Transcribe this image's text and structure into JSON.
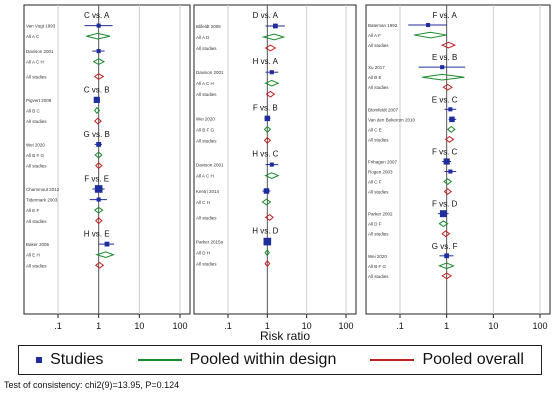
{
  "chart_data": {
    "type": "forest",
    "xlabel": "Risk ratio",
    "xscale": "log",
    "xlim": [
      0.1,
      100
    ],
    "xticks": [
      ".1",
      "1",
      "10",
      "100"
    ],
    "grid": true,
    "legend_position": "bottom",
    "colors": {
      "study": "#1f2e9c",
      "design": "#1a8a2e",
      "overall": "#c02020",
      "ref_line": "#555555",
      "grid": "#cccccc"
    },
    "panels": [
      {
        "comparisons": [
          {
            "label": "C vs. A",
            "rows": [
              {
                "name": "Van Vugt 1993",
                "type": "study",
                "est": 1.0,
                "lo": 0.45,
                "hi": 2.2,
                "size": 1.5
              },
              {
                "name": "All A C",
                "type": "design",
                "est": 0.95,
                "lo": 0.5,
                "hi": 1.9
              },
              {
                "name": "",
                "type": "spacer"
              },
              {
                "name": "Davison 2001",
                "type": "study",
                "est": 1.0,
                "lo": 0.7,
                "hi": 1.4,
                "size": 1.5
              },
              {
                "name": "All A C H",
                "type": "design",
                "est": 1.0,
                "lo": 0.75,
                "hi": 1.35
              },
              {
                "name": "",
                "type": "spacer"
              },
              {
                "name": "All studies",
                "type": "overall",
                "est": 1.0,
                "lo": 0.8,
                "hi": 1.3
              }
            ]
          },
          {
            "label": "C vs. B",
            "rows": [
              {
                "name": "Pigvert 2009",
                "type": "study",
                "est": 0.9,
                "lo": 0.8,
                "hi": 1.05,
                "size": 3
              },
              {
                "name": "All B C",
                "type": "design",
                "est": 0.9,
                "lo": 0.8,
                "hi": 1.05
              },
              {
                "name": "All studies",
                "type": "overall",
                "est": 0.95,
                "lo": 0.8,
                "hi": 1.15
              }
            ]
          },
          {
            "label": "G vs. B",
            "rows": [
              {
                "name": "Wei 2020",
                "type": "study",
                "est": 1.0,
                "lo": 0.8,
                "hi": 1.2,
                "size": 2
              },
              {
                "name": "All B F G",
                "type": "design",
                "est": 1.0,
                "lo": 0.82,
                "hi": 1.2
              },
              {
                "name": "All studies",
                "type": "overall",
                "est": 1.0,
                "lo": 0.85,
                "hi": 1.2
              }
            ]
          },
          {
            "label": "F vs. E",
            "rows": [
              {
                "name": "Chammout 2012",
                "type": "study",
                "est": 1.0,
                "lo": 0.7,
                "hi": 1.4,
                "size": 4
              },
              {
                "name": "Tidermark 2003",
                "type": "study",
                "est": 1.0,
                "lo": 0.6,
                "hi": 1.6,
                "size": 1.5
              },
              {
                "name": "All E F",
                "type": "design",
                "est": 1.0,
                "lo": 0.8,
                "hi": 1.25
              },
              {
                "name": "All studies",
                "type": "overall",
                "est": 1.0,
                "lo": 0.85,
                "hi": 1.2
              }
            ]
          },
          {
            "label": "H vs. E",
            "rows": [
              {
                "name": "Baker 2006",
                "type": "study",
                "est": 1.6,
                "lo": 1.0,
                "hi": 2.4,
                "size": 2
              },
              {
                "name": "All E H",
                "type": "design",
                "est": 1.5,
                "lo": 0.9,
                "hi": 2.3
              },
              {
                "name": "All studies",
                "type": "overall",
                "est": 1.05,
                "lo": 0.85,
                "hi": 1.3
              }
            ]
          }
        ]
      },
      {
        "comparisons": [
          {
            "label": "D vs. A",
            "rows": [
              {
                "name": "Blifeldt 2005",
                "type": "study",
                "est": 1.6,
                "lo": 0.9,
                "hi": 2.8,
                "size": 2
              },
              {
                "name": "All A D",
                "type": "design",
                "est": 1.5,
                "lo": 0.8,
                "hi": 2.6
              },
              {
                "name": "All studies",
                "type": "overall",
                "est": 1.2,
                "lo": 0.9,
                "hi": 1.6
              }
            ]
          },
          {
            "label": "H vs. A",
            "rows": [
              {
                "name": "Davison 2001",
                "type": "study",
                "est": 1.3,
                "lo": 0.9,
                "hi": 1.9,
                "size": 1.5
              },
              {
                "name": "All A C H",
                "type": "design",
                "est": 1.3,
                "lo": 0.9,
                "hi": 1.9
              },
              {
                "name": "All studies",
                "type": "overall",
                "est": 1.2,
                "lo": 0.95,
                "hi": 1.5
              }
            ]
          },
          {
            "label": "F vs. B",
            "rows": [
              {
                "name": "Wei 2020",
                "type": "study",
                "est": 1.0,
                "lo": 0.85,
                "hi": 1.2,
                "size": 2.5
              },
              {
                "name": "All B F G",
                "type": "design",
                "est": 1.0,
                "lo": 0.85,
                "hi": 1.2
              },
              {
                "name": "All studies",
                "type": "overall",
                "est": 1.0,
                "lo": 0.85,
                "hi": 1.2
              }
            ]
          },
          {
            "label": "H vs. C",
            "rows": [
              {
                "name": "Davison 2001",
                "type": "study",
                "est": 1.3,
                "lo": 0.9,
                "hi": 1.9,
                "size": 1.5
              },
              {
                "name": "All A C H",
                "type": "design",
                "est": 1.3,
                "lo": 0.9,
                "hi": 1.9
              },
              {
                "name": "",
                "type": "spacer"
              },
              {
                "name": "Kentri 2014",
                "type": "study",
                "est": 0.95,
                "lo": 0.75,
                "hi": 1.2,
                "size": 2.5
              },
              {
                "name": "All C H",
                "type": "design",
                "est": 0.95,
                "lo": 0.75,
                "hi": 1.2
              },
              {
                "name": "",
                "type": "spacer"
              },
              {
                "name": "All studies",
                "type": "overall",
                "est": 1.15,
                "lo": 0.9,
                "hi": 1.4
              }
            ]
          },
          {
            "label": "H vs. D",
            "rows": [
              {
                "name": "Parker 2015a",
                "type": "study",
                "est": 1.0,
                "lo": 0.85,
                "hi": 1.15,
                "size": 4
              },
              {
                "name": "All D H",
                "type": "design",
                "est": 1.0,
                "lo": 0.88,
                "hi": 1.12
              },
              {
                "name": "All studies",
                "type": "overall",
                "est": 1.0,
                "lo": 0.88,
                "hi": 1.15
              }
            ]
          }
        ]
      },
      {
        "comparisons": [
          {
            "label": "F vs. A",
            "rows": [
              {
                "name": "Bateman 1992",
                "type": "study",
                "est": 0.4,
                "lo": 0.15,
                "hi": 1.0,
                "size": 1.5
              },
              {
                "name": "All A F",
                "type": "design",
                "est": 0.45,
                "lo": 0.2,
                "hi": 1.0
              },
              {
                "name": "All studies",
                "type": "overall",
                "est": 1.1,
                "lo": 0.8,
                "hi": 1.5
              }
            ]
          },
          {
            "label": "E vs. B",
            "rows": [
              {
                "name": "Xu 2017",
                "type": "study",
                "est": 0.8,
                "lo": 0.25,
                "hi": 2.5,
                "size": 1.5
              },
              {
                "name": "All B E",
                "type": "design",
                "est": 0.8,
                "lo": 0.3,
                "hi": 2.4
              },
              {
                "name": "All studies",
                "type": "overall",
                "est": 1.05,
                "lo": 0.85,
                "hi": 1.3
              }
            ]
          },
          {
            "label": "E vs. C",
            "rows": [
              {
                "name": "Blomfeldt 2007",
                "type": "study",
                "est": 1.2,
                "lo": 0.9,
                "hi": 1.6,
                "size": 1.5
              },
              {
                "name": "Van den Bekerom 2010",
                "type": "study",
                "est": 1.3,
                "lo": 1.1,
                "hi": 1.6,
                "size": 2.5
              },
              {
                "name": "All C E",
                "type": "design",
                "est": 1.25,
                "lo": 1.05,
                "hi": 1.5
              },
              {
                "name": "All studies",
                "type": "overall",
                "est": 1.15,
                "lo": 0.95,
                "hi": 1.4
              }
            ]
          },
          {
            "label": "F vs. C",
            "rows": [
              {
                "name": "Frihagen 2007",
                "type": "study",
                "est": 1.0,
                "lo": 0.8,
                "hi": 1.25,
                "size": 3
              },
              {
                "name": "Rogen 2003",
                "type": "study",
                "est": 1.2,
                "lo": 0.9,
                "hi": 1.6,
                "size": 1.5
              },
              {
                "name": "All C F",
                "type": "design",
                "est": 1.05,
                "lo": 0.88,
                "hi": 1.25
              },
              {
                "name": "All studies",
                "type": "overall",
                "est": 1.05,
                "lo": 0.9,
                "hi": 1.25
              }
            ]
          },
          {
            "label": "F vs. D",
            "rows": [
              {
                "name": "Parker 2002",
                "type": "study",
                "est": 0.85,
                "lo": 0.65,
                "hi": 1.1,
                "size": 3.5
              },
              {
                "name": "All D F",
                "type": "design",
                "est": 0.85,
                "lo": 0.7,
                "hi": 1.05
              },
              {
                "name": "All studies",
                "type": "overall",
                "est": 0.95,
                "lo": 0.8,
                "hi": 1.15
              }
            ]
          },
          {
            "label": "G vs. F",
            "rows": [
              {
                "name": "Wei 2020",
                "type": "study",
                "est": 1.0,
                "lo": 0.7,
                "hi": 1.4,
                "size": 2
              },
              {
                "name": "All B F G",
                "type": "design",
                "est": 1.0,
                "lo": 0.7,
                "hi": 1.4
              },
              {
                "name": "All studies",
                "type": "overall",
                "est": 1.0,
                "lo": 0.8,
                "hi": 1.25
              }
            ]
          }
        ]
      }
    ]
  },
  "legend": {
    "studies": "Studies",
    "pooled_design": "Pooled within design",
    "pooled_overall": "Pooled overall"
  },
  "note": "Test of consistency: chi2(9)=13.95, P=0.124"
}
